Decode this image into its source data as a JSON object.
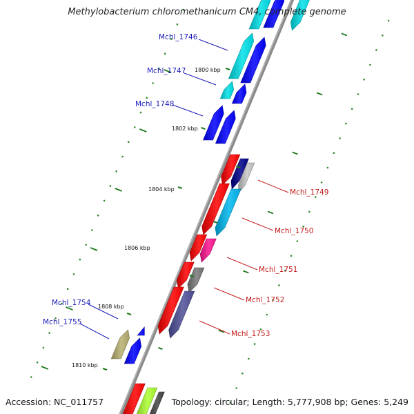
{
  "title": "Methylobacterium chloromethanicum CM4, complete genome",
  "accession": "Accession: NC_011757",
  "topology": "Topology: circular; Length: 5,777,908 bp; Genes: 5,249",
  "scale_labels": [
    "1800 kbp",
    "1802 kbp",
    "1804 kbp",
    "1806 kbp",
    "1808 kbp",
    "1810 kbp"
  ],
  "colors": {
    "backbone": "#8a8a8a",
    "forward_label": "#1a1ab8",
    "reverse_label": "#c41a1a",
    "tick_major": "#1f7a1f",
    "tick_minor": "#2e8b2e"
  },
  "genes_forward": [
    {
      "name": "Mchl_1746",
      "color": "#00e0e8"
    },
    {
      "name": "Mchl_1747",
      "color": "#00e0e8"
    },
    {
      "name": "Mchl_1748",
      "color": "#0000ff"
    },
    {
      "name": "Mchl_1754",
      "color": "#0000ff"
    },
    {
      "name": "Mchl_1755",
      "color": "#b8b070"
    }
  ],
  "genes_reverse": [
    {
      "name": "Mchl_1749",
      "color": "#c8c8c8"
    },
    {
      "name": "Mchl_1750",
      "color": "#00b8f0"
    },
    {
      "name": "Mchl_1751",
      "color": "#ff1493"
    },
    {
      "name": "Mchl_1752",
      "color": "#787878"
    },
    {
      "name": "Mchl_1753",
      "color": "#50509a"
    }
  ],
  "other_gene_colors": [
    "#ff0000",
    "#00008b",
    "#adff2f"
  ]
}
